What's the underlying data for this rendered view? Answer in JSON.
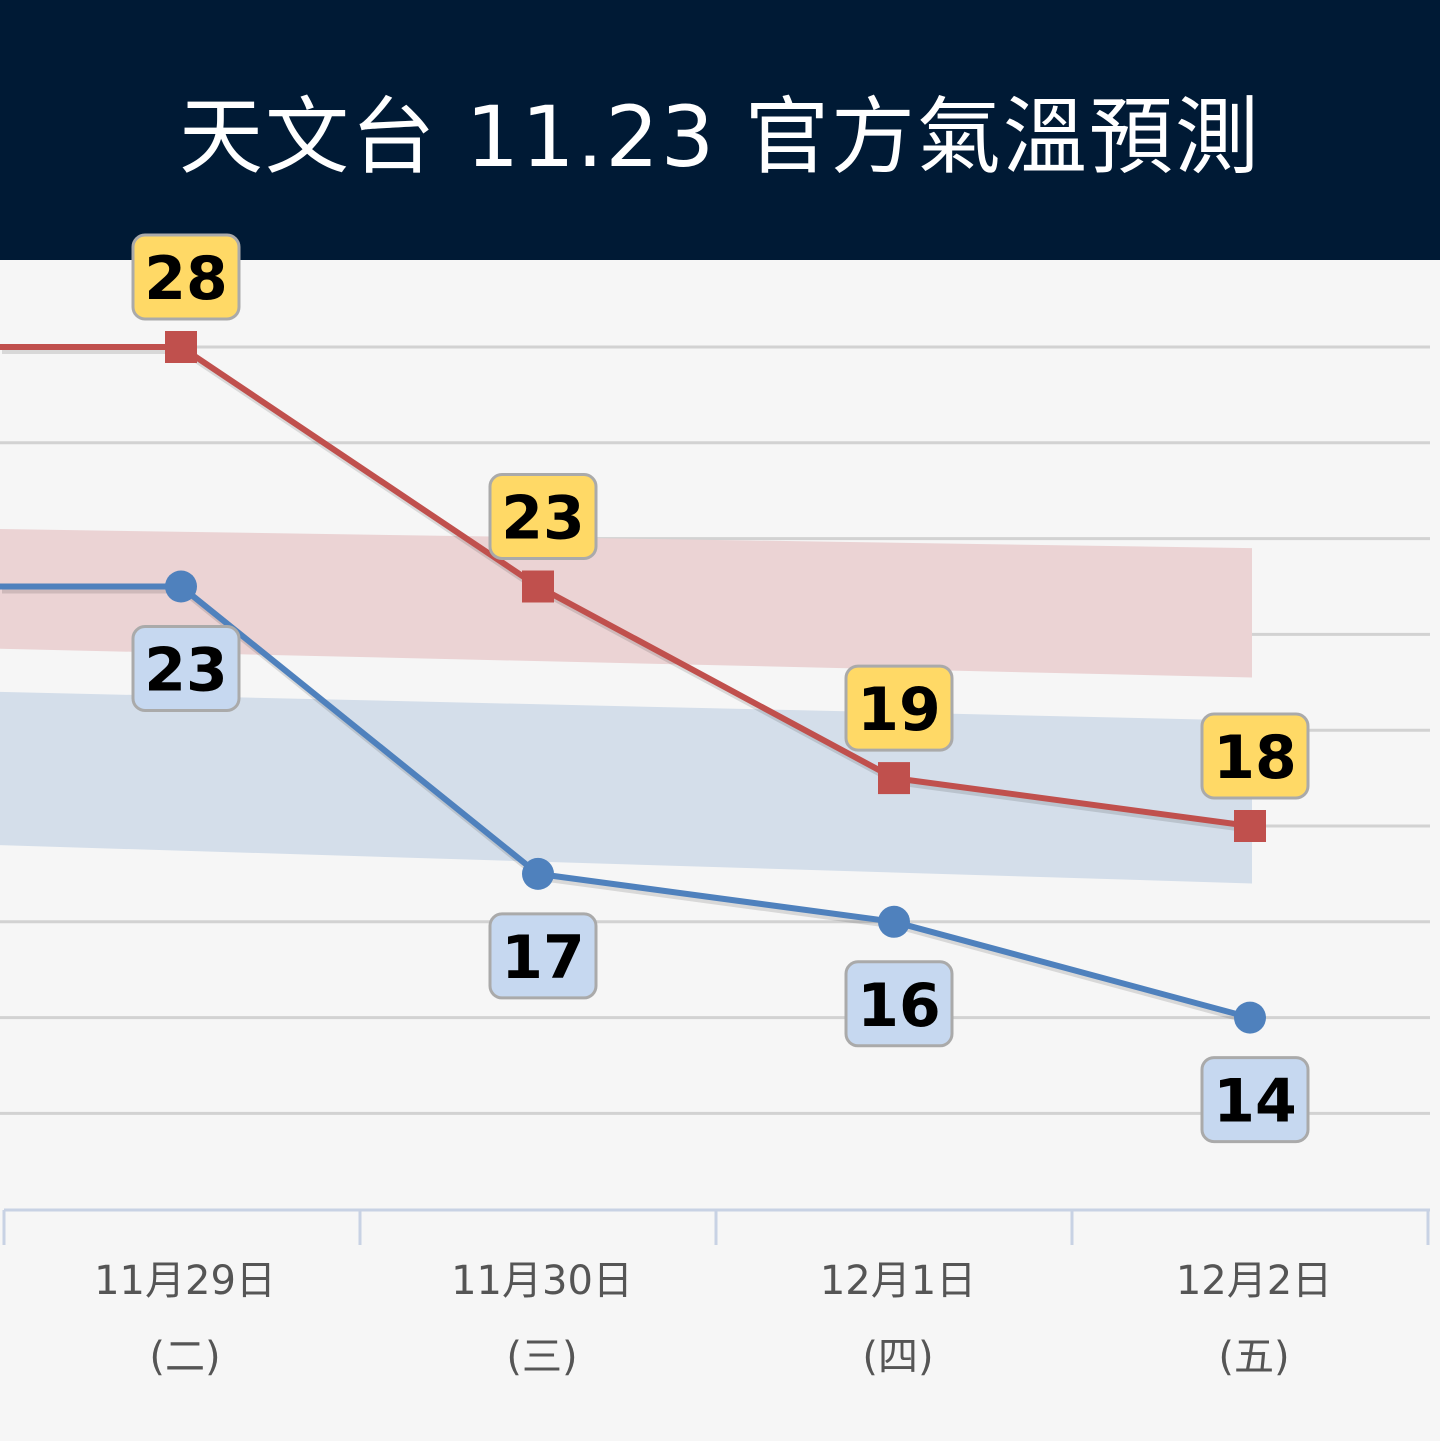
{
  "header": {
    "title": "天文台 11.23 官方氣溫預測"
  },
  "colors": {
    "header_bg": "#001a35",
    "high_line": "#c0504d",
    "low_line": "#4f81bd",
    "high_band": "#ebd3d4",
    "low_band": "#d4deea",
    "high_label_bg": "#ffd966",
    "low_label_bg": "#c6d8f0",
    "grid": "#d2d2d2",
    "axis": "#c8d2e4"
  },
  "chart_data": {
    "type": "line",
    "categories": [
      {
        "date": "11月29日",
        "weekday": "(二)"
      },
      {
        "date": "11月30日",
        "weekday": "(三)"
      },
      {
        "date": "12月1日",
        "weekday": "(四)"
      },
      {
        "date": "12月2日",
        "weekday": "(五)"
      }
    ],
    "series": [
      {
        "key": "high",
        "values": [
          28,
          23,
          19,
          18
        ],
        "marker": "square"
      },
      {
        "key": "low",
        "values": [
          23,
          17,
          16,
          14
        ],
        "marker": "circle"
      }
    ],
    "leading_values": {
      "high": 28,
      "low": 23
    },
    "bands": [
      {
        "key": "high",
        "start": [
          24.2,
          21.7
        ],
        "end": [
          23.8,
          21.1
        ]
      },
      {
        "key": "low",
        "start": [
          20.8,
          17.6
        ],
        "end": [
          20.2,
          16.8
        ]
      }
    ],
    "ylim": [
      10,
      29
    ],
    "grid": true,
    "gridlines": [
      28,
      26,
      24,
      22,
      20,
      18,
      16,
      14,
      12
    ]
  }
}
